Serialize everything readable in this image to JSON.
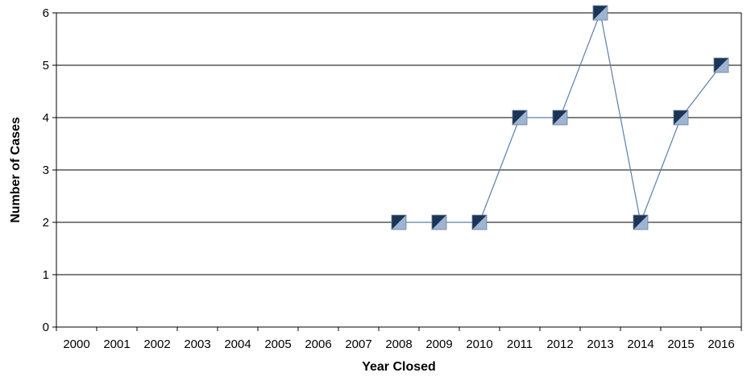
{
  "chart_data": {
    "type": "line",
    "title": "",
    "xlabel": "Year Closed",
    "ylabel": "Number of Cases",
    "categories": [
      "2000",
      "2001",
      "2002",
      "2003",
      "2004",
      "2005",
      "2006",
      "2007",
      "2008",
      "2009",
      "2010",
      "2011",
      "2012",
      "2013",
      "2014",
      "2015",
      "2016"
    ],
    "ylim": [
      0,
      6
    ],
    "yticks": [
      "0",
      "1",
      "2",
      "3",
      "4",
      "5",
      "6"
    ],
    "grid": true,
    "legend": "none",
    "series": [
      {
        "points": [
          {
            "x": "2008",
            "y": 2
          },
          {
            "x": "2009",
            "y": 2
          },
          {
            "x": "2010",
            "y": 2
          },
          {
            "x": "2011",
            "y": 4
          },
          {
            "x": "2012",
            "y": 4
          },
          {
            "x": "2013",
            "y": 6
          },
          {
            "x": "2014",
            "y": 2
          },
          {
            "x": "2015",
            "y": 4
          },
          {
            "x": "2016",
            "y": 5
          }
        ],
        "line_color": "#5a7fa8",
        "marker_dark": "#1b3556",
        "marker_light": "#9db4d2"
      }
    ]
  }
}
